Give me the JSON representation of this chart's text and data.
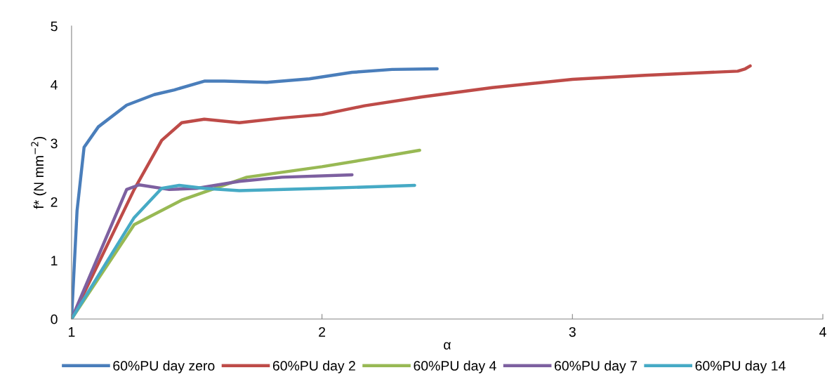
{
  "chart_data": {
    "type": "line",
    "xlabel": "α",
    "ylabel": "f* (N mm$^{−2}$)",
    "xlim": [
      1,
      4
    ],
    "xticks": [
      1,
      2,
      3,
      4
    ],
    "ylim": [
      0,
      5
    ],
    "yticks": [
      0,
      1,
      2,
      3,
      4,
      5
    ],
    "grid": false,
    "legend": "bottom",
    "marker": "none",
    "line_style": "solid",
    "series": [
      {
        "name": "60%PU day zero",
        "color": "#4a7ebb",
        "x": [
          1,
          1.022,
          1.05,
          1.107,
          1.22,
          1.33,
          1.41,
          1.53,
          1.61,
          1.78,
          1.95,
          2.12,
          2.28,
          2.46
        ],
        "values": [
          0,
          1.85,
          2.93,
          3.28,
          3.65,
          3.83,
          3.91,
          4.06,
          4.06,
          4.04,
          4.1,
          4.21,
          4.26,
          4.27
        ]
      },
      {
        "name": "60%PU day 2",
        "color": "#be4b48",
        "x": [
          1,
          1.25,
          1.36,
          1.44,
          1.53,
          1.67,
          1.84,
          2.0,
          2.17,
          2.4,
          2.68,
          3.0,
          3.29,
          3.66,
          3.69,
          3.71
        ],
        "values": [
          0,
          2.21,
          3.05,
          3.35,
          3.41,
          3.35,
          3.43,
          3.49,
          3.64,
          3.79,
          3.95,
          4.09,
          4.16,
          4.23,
          4.27,
          4.32
        ]
      },
      {
        "name": "60%PU day 4",
        "color": "#98b954",
        "x": [
          1,
          1.25,
          1.44,
          1.7,
          2.0,
          2.2,
          2.39
        ],
        "values": [
          0,
          1.61,
          2.03,
          2.42,
          2.6,
          2.74,
          2.88
        ]
      },
      {
        "name": "60%PU day 7",
        "color": "#7d60a0",
        "x": [
          1,
          1.22,
          1.27,
          1.39,
          1.5,
          1.67,
          1.84,
          2.12
        ],
        "values": [
          0,
          2.21,
          2.29,
          2.21,
          2.23,
          2.35,
          2.42,
          2.46
        ]
      },
      {
        "name": "60%PU day 14",
        "color": "#46aac5",
        "x": [
          1,
          1.25,
          1.36,
          1.43,
          1.53,
          1.67,
          2.0,
          2.37
        ],
        "values": [
          0,
          1.73,
          2.23,
          2.28,
          2.23,
          2.19,
          2.23,
          2.28
        ]
      }
    ]
  }
}
